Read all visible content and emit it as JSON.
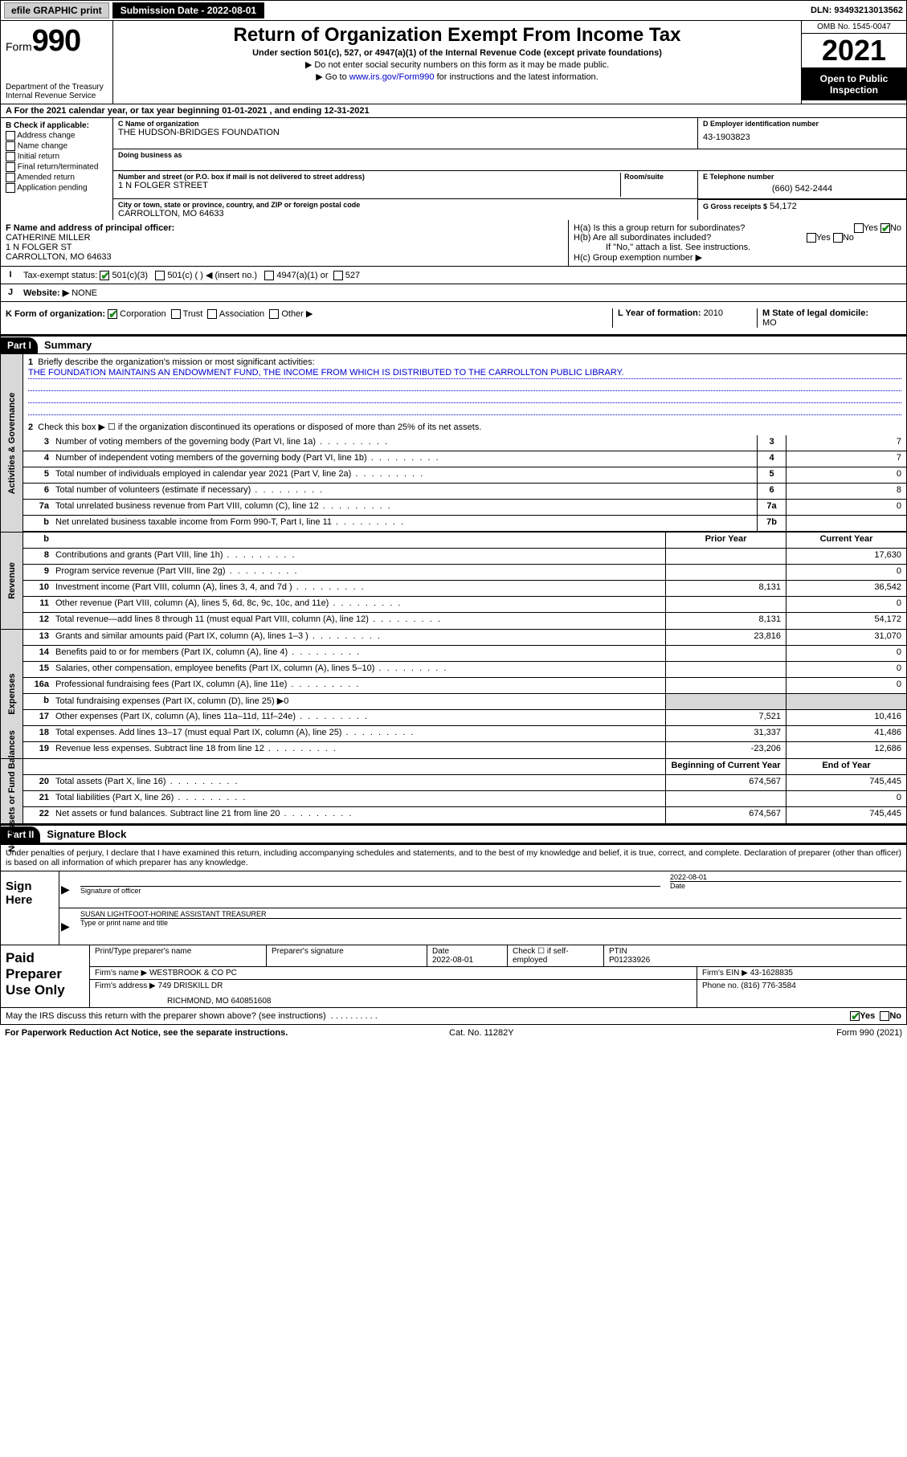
{
  "top": {
    "efile": "efile GRAPHIC print",
    "submission_label": "Submission Date - 2022-08-01",
    "dln": "DLN: 93493213013562"
  },
  "header": {
    "form_prefix": "Form",
    "form_number": "990",
    "title": "Return of Organization Exempt From Income Tax",
    "subtitle": "Under section 501(c), 527, or 4947(a)(1) of the Internal Revenue Code (except private foundations)",
    "note1": "▶ Do not enter social security numbers on this form as it may be made public.",
    "note2_pre": "▶ Go to ",
    "note2_link": "www.irs.gov/Form990",
    "note2_post": " for instructions and the latest information.",
    "dept": "Department of the Treasury\nInternal Revenue Service",
    "omb": "OMB No. 1545-0047",
    "year": "2021",
    "open": "Open to Public Inspection"
  },
  "line_a": "For the 2021 calendar year, or tax year beginning 01-01-2021   , and ending 12-31-2021",
  "section_b": {
    "header": "B Check if applicable:",
    "opts": [
      "Address change",
      "Name change",
      "Initial return",
      "Final return/terminated",
      "Amended return",
      "Application pending"
    ]
  },
  "section_c": {
    "name_label": "C Name of organization",
    "name": "THE HUDSON-BRIDGES FOUNDATION",
    "dba_label": "Doing business as",
    "addr_label": "Number and street (or P.O. box if mail is not delivered to street address)",
    "room_label": "Room/suite",
    "addr": "1 N FOLGER STREET",
    "city_label": "City or town, state or province, country, and ZIP or foreign postal code",
    "city": "CARROLLTON, MO  64633"
  },
  "section_d": {
    "label": "D Employer identification number",
    "value": "43-1903823"
  },
  "section_e": {
    "label": "E Telephone number",
    "value": "(660) 542-2444"
  },
  "section_g": {
    "label": "G Gross receipts $",
    "value": "54,172"
  },
  "section_f": {
    "label": "F  Name and address of principal officer:",
    "name": "CATHERINE MILLER",
    "addr1": "1 N FOLGER ST",
    "addr2": "CARROLLTON, MO  64633"
  },
  "section_h": {
    "a": "H(a)  Is this a group return for subordinates?",
    "b": "H(b)  Are all subordinates included?",
    "b_note": "If \"No,\" attach a list. See instructions.",
    "c": "H(c)  Group exemption number ▶",
    "yes": "Yes",
    "no": "No"
  },
  "section_i": {
    "label": "Tax-exempt status:",
    "opts": [
      "501(c)(3)",
      "501(c) (  ) ◀ (insert no.)",
      "4947(a)(1) or",
      "527"
    ]
  },
  "section_j": {
    "label": "Website: ▶",
    "value": "NONE"
  },
  "section_k": {
    "label": "K Form of organization:",
    "opts": [
      "Corporation",
      "Trust",
      "Association",
      "Other ▶"
    ]
  },
  "section_l": {
    "label": "L Year of formation: ",
    "value": "2010"
  },
  "section_m": {
    "label": "M State of legal domicile:",
    "value": "MO"
  },
  "part1": {
    "header": "Part I",
    "title": "Summary",
    "line1_label": "Briefly describe the organization's mission or most significant activities:",
    "mission": "THE FOUNDATION MAINTAINS AN ENDOWMENT FUND, THE INCOME FROM WHICH IS DISTRIBUTED TO THE CARROLLTON PUBLIC LIBRARY.",
    "line2": "Check this box ▶ ☐  if the organization discontinued its operations or disposed of more than 25% of its net assets.",
    "tabs": {
      "gov": "Activities & Governance",
      "rev": "Revenue",
      "exp": "Expenses",
      "net": "Net Assets or Fund Balances"
    },
    "cols": {
      "prior": "Prior Year",
      "current": "Current Year",
      "begin": "Beginning of Current Year",
      "end": "End of Year"
    },
    "rows_gov": [
      {
        "n": "3",
        "d": "Number of voting members of the governing body (Part VI, line 1a)",
        "v": "7"
      },
      {
        "n": "4",
        "d": "Number of independent voting members of the governing body (Part VI, line 1b)",
        "v": "7"
      },
      {
        "n": "5",
        "d": "Total number of individuals employed in calendar year 2021 (Part V, line 2a)",
        "v": "0"
      },
      {
        "n": "6",
        "d": "Total number of volunteers (estimate if necessary)",
        "v": "8"
      },
      {
        "n": "7a",
        "d": "Total unrelated business revenue from Part VIII, column (C), line 12",
        "v": "0"
      },
      {
        "n": "b",
        "d": "Net unrelated business taxable income from Form 990-T, Part I, line 11",
        "box": "7b",
        "v": ""
      }
    ],
    "rows_rev": [
      {
        "n": "8",
        "d": "Contributions and grants (Part VIII, line 1h)",
        "p": "",
        "c": "17,630"
      },
      {
        "n": "9",
        "d": "Program service revenue (Part VIII, line 2g)",
        "p": "",
        "c": "0"
      },
      {
        "n": "10",
        "d": "Investment income (Part VIII, column (A), lines 3, 4, and 7d )",
        "p": "8,131",
        "c": "36,542"
      },
      {
        "n": "11",
        "d": "Other revenue (Part VIII, column (A), lines 5, 6d, 8c, 9c, 10c, and 11e)",
        "p": "",
        "c": "0"
      },
      {
        "n": "12",
        "d": "Total revenue—add lines 8 through 11 (must equal Part VIII, column (A), line 12)",
        "p": "8,131",
        "c": "54,172"
      }
    ],
    "rows_exp": [
      {
        "n": "13",
        "d": "Grants and similar amounts paid (Part IX, column (A), lines 1–3 )",
        "p": "23,816",
        "c": "31,070"
      },
      {
        "n": "14",
        "d": "Benefits paid to or for members (Part IX, column (A), line 4)",
        "p": "",
        "c": "0"
      },
      {
        "n": "15",
        "d": "Salaries, other compensation, employee benefits (Part IX, column (A), lines 5–10)",
        "p": "",
        "c": "0"
      },
      {
        "n": "16a",
        "d": "Professional fundraising fees (Part IX, column (A), line 11e)",
        "p": "",
        "c": "0"
      },
      {
        "n": "b",
        "d": "Total fundraising expenses (Part IX, column (D), line 25) ▶0",
        "shade": true
      },
      {
        "n": "17",
        "d": "Other expenses (Part IX, column (A), lines 11a–11d, 11f–24e)",
        "p": "7,521",
        "c": "10,416"
      },
      {
        "n": "18",
        "d": "Total expenses. Add lines 13–17 (must equal Part IX, column (A), line 25)",
        "p": "31,337",
        "c": "41,486"
      },
      {
        "n": "19",
        "d": "Revenue less expenses. Subtract line 18 from line 12",
        "p": "-23,206",
        "c": "12,686"
      }
    ],
    "rows_net": [
      {
        "n": "20",
        "d": "Total assets (Part X, line 16)",
        "p": "674,567",
        "c": "745,445"
      },
      {
        "n": "21",
        "d": "Total liabilities (Part X, line 26)",
        "p": "",
        "c": "0"
      },
      {
        "n": "22",
        "d": "Net assets or fund balances. Subtract line 21 from line 20",
        "p": "674,567",
        "c": "745,445"
      }
    ]
  },
  "part2": {
    "header": "Part II",
    "title": "Signature Block",
    "declaration": "Under penalties of perjury, I declare that I have examined this return, including accompanying schedules and statements, and to the best of my knowledge and belief, it is true, correct, and complete. Declaration of preparer (other than officer) is based on all information of which preparer has any knowledge.",
    "sign_here": "Sign Here",
    "sig_officer": "Signature of officer",
    "sig_date_label": "Date",
    "sig_date": "2022-08-01",
    "officer_name": "SUSAN LIGHTFOOT-HORINE  ASSISTANT TREASURER",
    "type_label": "Type or print name and title"
  },
  "paid": {
    "label": "Paid Preparer Use Only",
    "h": [
      "Print/Type preparer's name",
      "Preparer's signature",
      "Date",
      "Check ☐ if self-employed",
      "PTIN"
    ],
    "date": "2022-08-01",
    "ptin": "P01233926",
    "firm_name_label": "Firm's name    ▶",
    "firm_name": "WESTBROOK & CO PC",
    "firm_ein_label": "Firm's EIN ▶",
    "firm_ein": "43-1628835",
    "firm_addr_label": "Firm's address ▶",
    "firm_addr1": "749 DRISKILL DR",
    "firm_addr2": "RICHMOND, MO  640851608",
    "phone_label": "Phone no.",
    "phone": "(816) 776-3584"
  },
  "footer": {
    "discuss": "May the IRS discuss this return with the preparer shown above? (see instructions)",
    "yes": "Yes",
    "no": "No",
    "paperwork": "For Paperwork Reduction Act Notice, see the separate instructions.",
    "cat": "Cat. No. 11282Y",
    "form": "Form 990 (2021)"
  },
  "colors": {
    "link": "#0000cc",
    "check": "#1a8a1a",
    "shade": "#d8d8d8"
  }
}
